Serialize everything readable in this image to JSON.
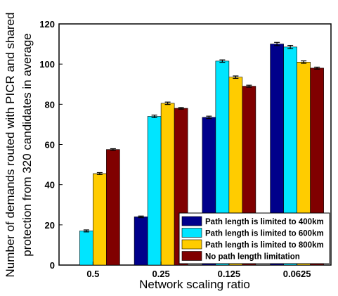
{
  "chart_data": {
    "type": "bar",
    "xlabel": "Network scaling ratio",
    "ylabel_lines": [
      "Number of demands routed with PICR and shared",
      "protection from 320 candidates in average"
    ],
    "categories": [
      "0.5",
      "0.25",
      "0.125",
      "0.0625"
    ],
    "ylim": [
      0,
      120
    ],
    "yticks": [
      0,
      20,
      40,
      60,
      80,
      100,
      120
    ],
    "grid": false,
    "error_bars": true,
    "legend_position": "bottom-right",
    "series": [
      {
        "name": "Path length is limited to 400km",
        "color": "#00008b",
        "values": [
          0,
          24,
          73.5,
          110
        ],
        "errors": [
          0,
          0.4,
          0.6,
          0.8
        ]
      },
      {
        "name": "Path length is limited to 600km",
        "color": "#00e5ff",
        "values": [
          17,
          74,
          101.5,
          108.5
        ],
        "errors": [
          0.5,
          0.6,
          0.6,
          0.8
        ]
      },
      {
        "name": "Path length is limited to 800km",
        "color": "#ffcc00",
        "values": [
          45.5,
          80.5,
          93.5,
          101
        ],
        "errors": [
          0.5,
          0.6,
          0.6,
          0.6
        ]
      },
      {
        "name": "No path length limitation",
        "color": "#800000",
        "values": [
          57.5,
          78,
          89,
          98
        ],
        "errors": [
          0.4,
          0.4,
          0.5,
          0.5
        ]
      }
    ]
  }
}
